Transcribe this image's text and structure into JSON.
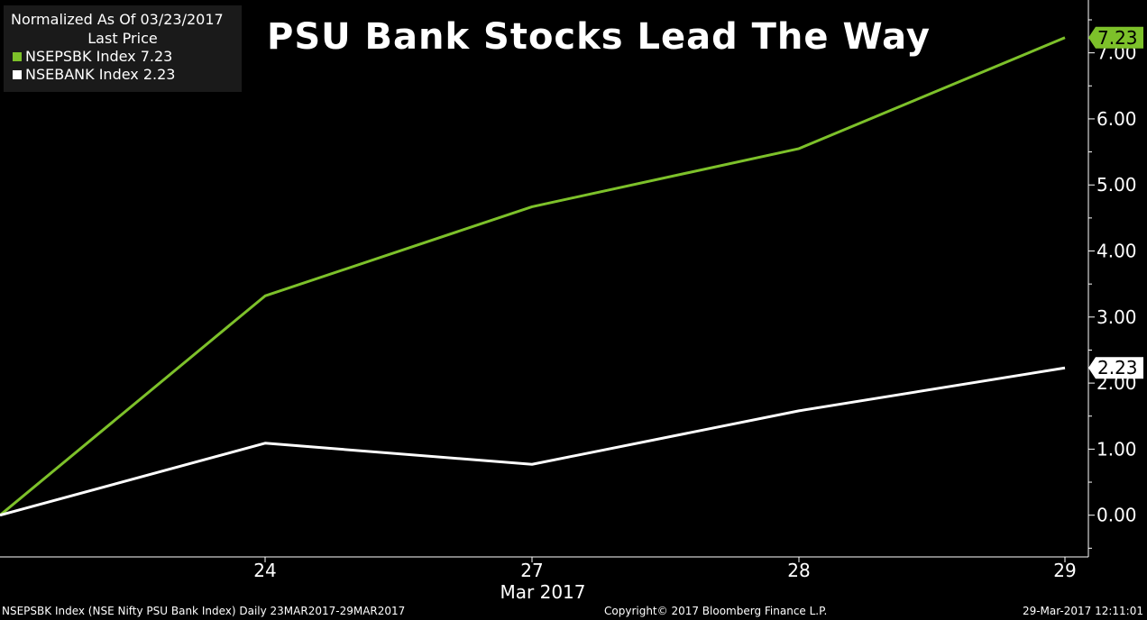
{
  "legend": {
    "normalized_label": "Normalized As Of 03/23/2017",
    "last_price_label": "Last Price",
    "entries": [
      {
        "text": "NSEPSBK Index 7.23",
        "color": "#7dc12a"
      },
      {
        "text": "NSEBANK Index 2.23",
        "color": "#ffffff"
      }
    ]
  },
  "footer": {
    "left": "NSEPSBK Index (NSE Nifty PSU Bank Index)  Daily 23MAR2017-29MAR2017",
    "center": "Copyright© 2017 Bloomberg Finance L.P.",
    "right": "29-Mar-2017 12:11:01"
  },
  "chart_data": {
    "type": "line",
    "title": "PSU Bank Stocks Lead The Way",
    "x": [
      "23",
      "24",
      "27",
      "28",
      "29"
    ],
    "x_tick_labels": [
      "24",
      "27",
      "28",
      "29"
    ],
    "xlabel": "Mar 2017",
    "ylabel": "",
    "ylim": [
      -0.55,
      7.8
    ],
    "y_ticks": [
      "0.00",
      "1.00",
      "2.00",
      "3.00",
      "4.00",
      "5.00",
      "6.00",
      "7.00"
    ],
    "y_axis_position": "right",
    "grid": false,
    "legend_position": "top-left",
    "series": [
      {
        "name": "NSEPSBK Index",
        "color": "#7dc12a",
        "values": [
          0,
          3.32,
          4.67,
          5.55,
          7.23
        ],
        "last_label": "7.23"
      },
      {
        "name": "NSEBANK Index",
        "color": "#ffffff",
        "values": [
          0,
          1.09,
          0.77,
          1.58,
          2.23
        ],
        "last_label": "2.23"
      }
    ]
  }
}
